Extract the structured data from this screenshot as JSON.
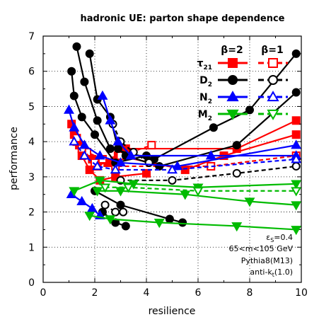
{
  "chart_data": {
    "type": "line",
    "title": "hadronic UE: parton shape dependence",
    "xlabel": "resilience",
    "ylabel": "performance",
    "xlim": [
      0,
      10
    ],
    "ylim": [
      0,
      7
    ],
    "xticks": [
      "0",
      "2",
      "4",
      "6",
      "8",
      "10"
    ],
    "yticks": [
      "0",
      "1",
      "2",
      "3",
      "4",
      "5",
      "6",
      "7"
    ],
    "grid": "dotted at major ticks",
    "legend": {
      "placement": "top-right",
      "column_headers": [
        "β=2",
        "β=1"
      ],
      "entries": [
        {
          "label": "τ21",
          "main": "τ",
          "sub": "21",
          "color": "#ff0000",
          "marker": "square"
        },
        {
          "label": "D2",
          "main": "D",
          "sub": "2",
          "color": "#000000",
          "marker": "circle"
        },
        {
          "label": "N2",
          "main": "N",
          "sub": "2",
          "color": "#0000ff",
          "marker": "triangle-up"
        },
        {
          "label": "M2",
          "main": "M",
          "sub": "2",
          "color": "#00bb00",
          "marker": "triangle-down"
        }
      ]
    },
    "annotations": {
      "eps": {
        "main": "ε",
        "sub": "S",
        "rest": "=0.4"
      },
      "mass_window": "65<m<105 GeV",
      "generator": "Pythia8(M13)",
      "jet_alg": {
        "main": "anti-k",
        "sub": "t",
        "rest": "(1.0)"
      }
    },
    "series": [
      {
        "name": "τ21 β=2",
        "color": "#ff0000",
        "marker": "square",
        "filled": true,
        "dashed": false,
        "points": [
          [
            1.1,
            4.5
          ],
          [
            1.3,
            4.0
          ],
          [
            1.5,
            3.6
          ],
          [
            1.8,
            3.2
          ],
          [
            2.2,
            2.9
          ],
          [
            2.8,
            3.0
          ],
          [
            4.0,
            3.1
          ]
        ]
      },
      {
        "name": "τ21 β=2",
        "color": "#ff0000",
        "marker": "square",
        "filled": true,
        "dashed": false,
        "points": [
          [
            1.2,
            4.2
          ],
          [
            1.6,
            3.7
          ],
          [
            2.1,
            3.3
          ],
          [
            2.9,
            3.6
          ],
          [
            5.5,
            3.2
          ],
          [
            7.0,
            3.6
          ],
          [
            9.8,
            4.2
          ]
        ]
      },
      {
        "name": "τ21 β=2",
        "color": "#ff0000",
        "marker": "square",
        "filled": true,
        "dashed": false,
        "points": [
          [
            1.4,
            3.9
          ],
          [
            1.9,
            3.5
          ],
          [
            2.5,
            3.4
          ],
          [
            3.2,
            3.8
          ],
          [
            7.5,
            3.8
          ],
          [
            9.8,
            4.6
          ]
        ]
      },
      {
        "name": "τ21 β=1",
        "color": "#ff0000",
        "marker": "square",
        "filled": false,
        "dashed": true,
        "points": [
          [
            1.3,
            4.1
          ],
          [
            1.7,
            3.7
          ],
          [
            2.3,
            3.5
          ],
          [
            3.0,
            3.6
          ],
          [
            4.2,
            3.9
          ]
        ]
      },
      {
        "name": "τ21 β=1",
        "color": "#ff0000",
        "marker": "square",
        "filled": false,
        "dashed": true,
        "points": [
          [
            1.5,
            3.8
          ],
          [
            2.0,
            3.4
          ],
          [
            2.8,
            3.3
          ],
          [
            6.5,
            3.3
          ],
          [
            9.8,
            3.6
          ]
        ]
      },
      {
        "name": "D2 β=2",
        "color": "#000000",
        "marker": "circle",
        "filled": true,
        "dashed": false,
        "points": [
          [
            1.1,
            6.0
          ],
          [
            1.2,
            5.3
          ],
          [
            1.5,
            4.7
          ],
          [
            2.0,
            4.2
          ],
          [
            2.8,
            3.4
          ],
          [
            4.0,
            3.6
          ]
        ]
      },
      {
        "name": "D2 β=2",
        "color": "#000000",
        "marker": "circle",
        "filled": true,
        "dashed": false,
        "points": [
          [
            1.3,
            6.7
          ],
          [
            1.6,
            5.7
          ],
          [
            2.1,
            4.6
          ],
          [
            2.6,
            3.8
          ],
          [
            4.3,
            3.5
          ],
          [
            6.6,
            4.4
          ],
          [
            8.0,
            4.9
          ],
          [
            9.8,
            6.5
          ]
        ]
      },
      {
        "name": "D2 β=2",
        "color": "#000000",
        "marker": "circle",
        "filled": true,
        "dashed": false,
        "points": [
          [
            1.8,
            6.5
          ],
          [
            2.1,
            5.2
          ],
          [
            2.6,
            4.7
          ],
          [
            2.9,
            3.8
          ],
          [
            3.2,
            3.6
          ],
          [
            4.5,
            3.3
          ],
          [
            7.5,
            3.9
          ],
          [
            9.8,
            5.4
          ]
        ]
      },
      {
        "name": "D2 β=2",
        "color": "#000000",
        "marker": "circle",
        "filled": true,
        "dashed": false,
        "points": [
          [
            2.3,
            2.0
          ],
          [
            2.8,
            1.7
          ],
          [
            3.2,
            1.6
          ]
        ]
      },
      {
        "name": "D2 β=2",
        "color": "#000000",
        "marker": "circle",
        "filled": true,
        "dashed": false,
        "points": [
          [
            2.0,
            2.6
          ],
          [
            3.0,
            2.2
          ],
          [
            4.9,
            1.8
          ],
          [
            5.4,
            1.7
          ]
        ]
      },
      {
        "name": "D2 β=1",
        "color": "#000000",
        "marker": "circle",
        "filled": false,
        "dashed": true,
        "points": [
          [
            2.7,
            4.5
          ],
          [
            3.0,
            4.0
          ],
          [
            3.5,
            3.7
          ],
          [
            4.1,
            3.4
          ]
        ]
      },
      {
        "name": "D2 β=1",
        "color": "#000000",
        "marker": "circle",
        "filled": false,
        "dashed": true,
        "points": [
          [
            2.4,
            2.2
          ],
          [
            2.8,
            2.0
          ],
          [
            3.1,
            2.0
          ]
        ]
      },
      {
        "name": "D2 β=1",
        "color": "#000000",
        "marker": "circle",
        "filled": false,
        "dashed": true,
        "points": [
          [
            3.0,
            2.9
          ],
          [
            5.0,
            2.9
          ],
          [
            7.5,
            3.1
          ],
          [
            9.8,
            3.3
          ]
        ]
      },
      {
        "name": "N2 β=2",
        "color": "#0000ff",
        "marker": "triangle-up",
        "filled": true,
        "dashed": false,
        "points": [
          [
            1.0,
            4.9
          ],
          [
            1.2,
            4.4
          ],
          [
            1.6,
            3.9
          ],
          [
            2.2,
            3.6
          ],
          [
            3.0,
            3.4
          ],
          [
            5.2,
            3.3
          ],
          [
            9.8,
            3.9
          ]
        ]
      },
      {
        "name": "N2 β=2",
        "color": "#0000ff",
        "marker": "triangle-up",
        "filled": true,
        "dashed": false,
        "points": [
          [
            2.3,
            5.3
          ],
          [
            2.6,
            4.6
          ],
          [
            2.9,
            4.0
          ],
          [
            3.4,
            3.6
          ],
          [
            6.5,
            3.6
          ],
          [
            9.8,
            3.6
          ]
        ]
      },
      {
        "name": "N2 β=2",
        "color": "#0000ff",
        "marker": "triangle-up",
        "filled": true,
        "dashed": false,
        "points": [
          [
            1.1,
            2.5
          ],
          [
            1.5,
            2.3
          ],
          [
            1.9,
            2.1
          ],
          [
            2.2,
            1.9
          ]
        ]
      },
      {
        "name": "N2 β=1",
        "color": "#0000ff",
        "marker": "triangle-up",
        "filled": false,
        "dashed": true,
        "points": [
          [
            1.2,
            4.0
          ],
          [
            1.6,
            3.6
          ],
          [
            2.1,
            3.3
          ],
          [
            2.8,
            3.2
          ],
          [
            5.0,
            3.2
          ],
          [
            9.8,
            3.5
          ]
        ]
      },
      {
        "name": "M2 β=2",
        "color": "#00bb00",
        "marker": "triangle-down",
        "filled": true,
        "dashed": false,
        "points": [
          [
            1.2,
            2.6
          ],
          [
            2.2,
            2.9
          ],
          [
            3.5,
            2.8
          ],
          [
            6.0,
            2.7
          ],
          [
            9.8,
            2.8
          ]
        ]
      },
      {
        "name": "M2 β=2",
        "color": "#00bb00",
        "marker": "triangle-down",
        "filled": true,
        "dashed": false,
        "points": [
          [
            1.8,
            1.9
          ],
          [
            2.6,
            1.8
          ],
          [
            4.5,
            1.7
          ],
          [
            7.5,
            1.6
          ],
          [
            9.8,
            1.5
          ]
        ]
      },
      {
        "name": "M2 β=2",
        "color": "#00bb00",
        "marker": "triangle-down",
        "filled": true,
        "dashed": false,
        "points": [
          [
            2.1,
            2.6
          ],
          [
            3.0,
            2.6
          ],
          [
            5.5,
            2.5
          ],
          [
            8.0,
            2.3
          ],
          [
            9.8,
            2.2
          ]
        ]
      },
      {
        "name": "M2 β=1",
        "color": "#00bb00",
        "marker": "triangle-down",
        "filled": false,
        "dashed": true,
        "points": [
          [
            2.4,
            2.7
          ],
          [
            3.3,
            2.7
          ],
          [
            6.0,
            2.6
          ],
          [
            9.8,
            2.6
          ]
        ]
      }
    ]
  }
}
